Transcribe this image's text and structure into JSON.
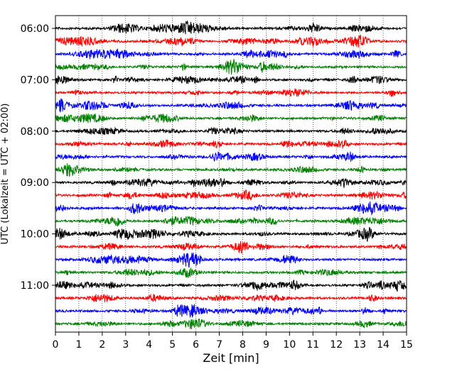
{
  "chart_data": {
    "type": "line",
    "subtype": "seismogram-helicorder",
    "xlabel": "Zeit  [min]",
    "ylabel": "UTC (Lokalzeit = UTC + 02:00)",
    "xlim": [
      0,
      15
    ],
    "x_ticks": [
      "0",
      "1",
      "2",
      "3",
      "4",
      "5",
      "6",
      "7",
      "8",
      "9",
      "10",
      "11",
      "12",
      "13",
      "14",
      "15"
    ],
    "trace_start_times": [
      "06:00",
      "06:15",
      "06:30",
      "06:45",
      "07:00",
      "07:15",
      "07:30",
      "07:45",
      "08:00",
      "08:15",
      "08:30",
      "08:45",
      "09:00",
      "09:15",
      "09:30",
      "09:45",
      "10:00",
      "10:15",
      "10:30",
      "10:45",
      "11:00",
      "11:15",
      "11:30",
      "11:45"
    ],
    "y_tick_labels": [
      "06:00",
      "07:00",
      "08:00",
      "09:00",
      "10:00",
      "11:00"
    ],
    "trace_colors": [
      "#000000",
      "#ff0000",
      "#0000ff",
      "#008000"
    ],
    "vertical_grid": "dotted at each minute",
    "horizontal_grid": false,
    "legend": "none"
  }
}
